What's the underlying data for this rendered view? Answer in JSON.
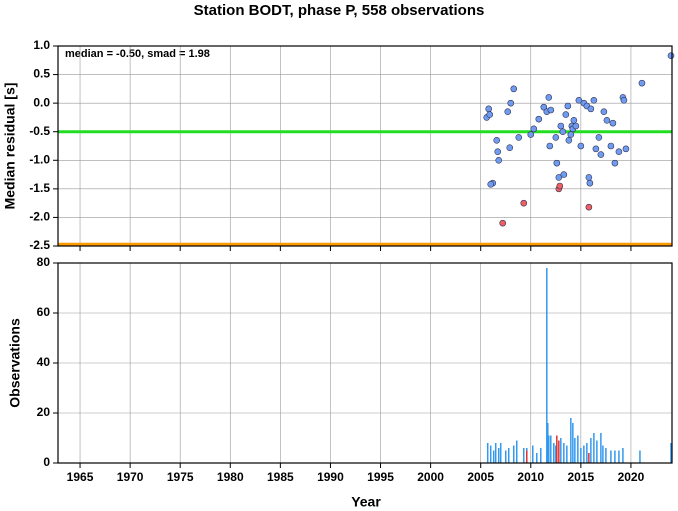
{
  "chart_data": [
    {
      "type": "scatter",
      "title": "Station BODT, phase P, 558 observations",
      "ylabel": "Median residual [s]",
      "annotation": "median = -0.50, smad = 1.98",
      "xlim": [
        1962.8,
        2024.1
      ],
      "xticks": [
        1965,
        1970,
        1975,
        1980,
        1985,
        1990,
        1995,
        2000,
        2005,
        2010,
        2015,
        2020
      ],
      "ylim": [
        -2.5,
        1.0
      ],
      "yticks": [
        {
          "value": -2.5,
          "label": "-2.5"
        },
        {
          "value": -2.0,
          "label": "-2.0"
        },
        -1.5,
        {
          "value": -1.0,
          "label": "-1.0"
        },
        -0.5,
        {
          "value": 0.0,
          "label": "0.0"
        },
        0.5,
        {
          "value": 1.0,
          "label": "1.0"
        }
      ],
      "grid": true,
      "hlines": [
        {
          "value": -0.5,
          "color": "#22dd22"
        },
        {
          "value": -2.47,
          "color": "#ff9900"
        }
      ],
      "series": [
        {
          "color": "#6f9cf0",
          "x": [
            2005.8,
            2005.6,
            2005.9,
            2006.2,
            2006.0,
            2006.6,
            2006.7,
            2006.8,
            2007.7,
            2008.0,
            2008.3,
            2007.9,
            2008.8,
            2010.0,
            2010.3,
            2010.8,
            2011.3,
            2011.6,
            2011.8,
            2012.0,
            2011.9,
            2012.5,
            2012.6,
            2012.8,
            2013.0,
            2013.2,
            2013.3,
            2013.5,
            2013.7,
            2013.8,
            2014.0,
            2014.1,
            2014.2,
            2014.3,
            2014.5,
            2014.8,
            2015.0,
            2015.3,
            2015.6,
            2015.8,
            2015.9,
            2016.0,
            2016.3,
            2016.5,
            2016.8,
            2017.0,
            2017.3,
            2017.6,
            2018.0,
            2018.2,
            2018.4,
            2018.8,
            2019.2,
            2019.3,
            2019.5,
            2021.1,
            2024.0
          ],
          "values": [
            -0.1,
            -0.25,
            -0.2,
            -1.4,
            -1.42,
            -0.65,
            -0.85,
            -1.0,
            -0.15,
            0.0,
            0.25,
            -0.78,
            -0.6,
            -0.55,
            -0.45,
            -0.28,
            -0.07,
            -0.15,
            0.1,
            -0.12,
            -0.75,
            -0.6,
            -1.05,
            -1.3,
            -0.4,
            -0.5,
            -1.25,
            -0.2,
            -0.05,
            -0.65,
            -0.55,
            -0.4,
            -0.45,
            -0.3,
            -0.4,
            0.05,
            -0.75,
            0.0,
            -0.05,
            -1.3,
            -1.4,
            -0.1,
            0.05,
            -0.8,
            -0.6,
            -0.9,
            -0.15,
            -0.3,
            -0.75,
            -0.35,
            -1.05,
            -0.85,
            0.1,
            0.05,
            -0.8,
            0.35,
            0.83
          ]
        },
        {
          "color": "#f06060",
          "x": [
            2007.2,
            2009.3,
            2012.8,
            2012.9,
            2015.8
          ],
          "values": [
            -2.1,
            -1.75,
            -1.5,
            -1.45,
            -1.82
          ]
        }
      ]
    },
    {
      "type": "bar",
      "xlabel": "Year",
      "ylabel": "Observations",
      "xlim": [
        1962.8,
        2024.1
      ],
      "xticks": [
        1965,
        1970,
        1975,
        1980,
        1985,
        1990,
        1995,
        2000,
        2005,
        2010,
        2015,
        2020
      ],
      "ylim": [
        0,
        80
      ],
      "yticks": [
        0,
        20,
        40,
        60,
        80
      ],
      "grid": true,
      "series": [
        {
          "color": "#3399ee",
          "x": [
            2005.7,
            2006.0,
            2006.3,
            2006.5,
            2006.8,
            2007.0,
            2007.5,
            2007.8,
            2008.3,
            2008.6,
            2009.3,
            2009.6,
            2010.2,
            2010.6,
            2011.0,
            2011.6,
            2011.7,
            2011.8,
            2012.0,
            2012.3,
            2012.5,
            2013.0,
            2013.3,
            2013.6,
            2014.0,
            2014.2,
            2014.4,
            2014.7,
            2015.0,
            2015.3,
            2015.6,
            2016.0,
            2016.3,
            2016.6,
            2017.0,
            2017.2,
            2017.5,
            2018.0,
            2018.4,
            2018.8,
            2019.2,
            2020.9,
            2024.0
          ],
          "values": [
            8,
            7,
            5,
            8,
            6,
            8,
            5,
            6,
            7,
            9,
            6,
            6,
            7,
            4,
            6,
            78,
            16,
            11,
            11,
            8,
            7,
            10,
            8,
            7,
            18,
            16,
            10,
            11,
            6,
            7,
            8,
            10,
            12,
            9,
            12,
            7,
            6,
            5,
            5,
            5,
            6,
            5,
            8
          ]
        },
        {
          "color": "#dd3333",
          "x": [
            2009.6,
            2012.6,
            2012.8,
            2015.8
          ],
          "values": [
            5,
            11,
            9,
            4
          ]
        }
      ]
    }
  ]
}
